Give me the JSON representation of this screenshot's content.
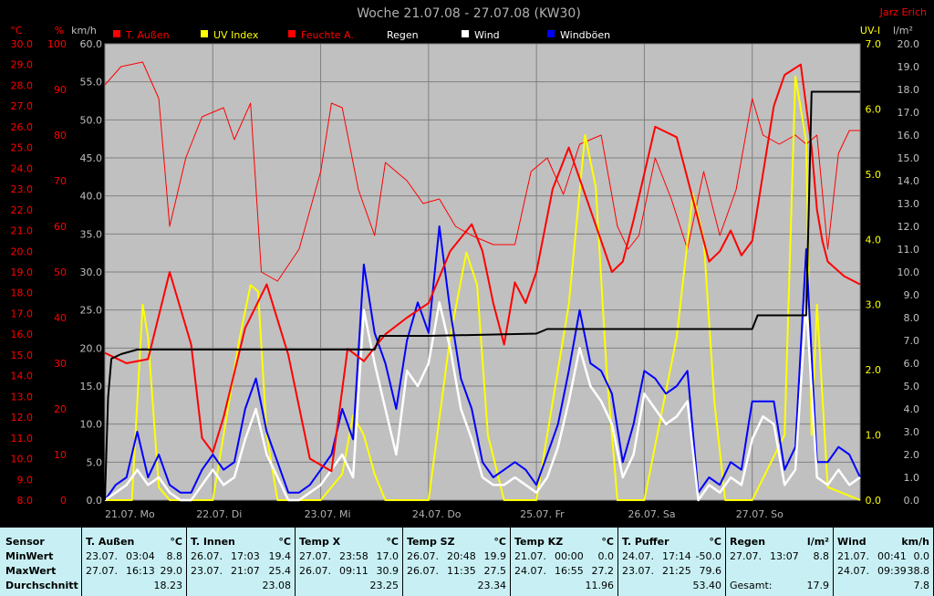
{
  "title": "Woche 21.07.08 - 27.07.08 (KW30)",
  "author": "Jarz Erich",
  "colors": {
    "temp": "#ff0000",
    "uv": "#ffff00",
    "hum": "#ff0000",
    "rain": "#000000",
    "wind": "#ffffff",
    "gust": "#0000ff",
    "grid": "#808080",
    "plot_bg": "#c0c0c0"
  },
  "chart_data": {
    "type": "line",
    "title": "Woche 21.07.08 - 27.07.08 (KW30)",
    "x_days": [
      "21.07. Mo",
      "22.07. Di",
      "23.07. Mi",
      "24.07. Do",
      "25.07. Fr",
      "26.07. Sa",
      "27.07. So"
    ],
    "axes": {
      "temp": {
        "unit": "°C",
        "min": 8.0,
        "max": 30.0,
        "ticks": [
          "30.0",
          "29.0",
          "28.0",
          "27.0",
          "26.0",
          "25.0",
          "24.0",
          "23.0",
          "22.0",
          "21.0",
          "20.0",
          "19.0",
          "18.0",
          "17.0",
          "16.0",
          "15.0",
          "14.0",
          "13.0",
          "12.0",
          "11.0",
          "10.0",
          "9.0",
          "8.0"
        ]
      },
      "hum": {
        "unit": "%",
        "min": 0,
        "max": 100,
        "ticks": [
          "100",
          "90",
          "80",
          "70",
          "60",
          "50",
          "40",
          "30",
          "20",
          "10",
          "0"
        ]
      },
      "wind": {
        "unit": "km/h",
        "min": 0,
        "max": 60,
        "ticks": [
          "60.0",
          "55.0",
          "50.0",
          "45.0",
          "40.0",
          "35.0",
          "30.0",
          "25.0",
          "20.0",
          "15.0",
          "10.0",
          "5.0",
          "0.0"
        ]
      },
      "uv": {
        "unit": "UV-I",
        "min": 0,
        "max": 7,
        "ticks": [
          "7.0",
          "6.0",
          "5.0",
          "4.0",
          "3.0",
          "2.0",
          "1.0",
          "0.0"
        ]
      },
      "rain": {
        "unit": "l/m²",
        "min": 0,
        "max": 20,
        "ticks": [
          "20.0",
          "19.0",
          "18.0",
          "17.0",
          "16.0",
          "15.0",
          "14.0",
          "13.0",
          "12.0",
          "11.0",
          "10.0",
          "9.0",
          "8.0",
          "7.0",
          "6.0",
          "5.0",
          "4.0",
          "3.0",
          "2.0",
          "1.0",
          "0.0"
        ]
      }
    },
    "legend": [
      "T. Außen",
      "UV Index",
      "Feuchte A.",
      "Regen",
      "Wind",
      "Windböen"
    ],
    "series": [
      {
        "name": "T. Außen",
        "axis": "temp",
        "x": [
          0,
          0.2,
          0.4,
          0.6,
          0.8,
          0.9,
          1.0,
          1.1,
          1.3,
          1.5,
          1.7,
          1.9,
          2.1,
          2.25,
          2.4,
          2.6,
          2.8,
          3.0,
          3.2,
          3.4,
          3.5,
          3.6,
          3.7,
          3.8,
          3.9,
          4.0,
          4.15,
          4.3,
          4.5,
          4.7,
          4.8,
          4.9,
          5.1,
          5.3,
          5.45,
          5.6,
          5.7,
          5.8,
          5.9,
          6.0,
          6.2,
          6.3,
          6.45,
          6.55,
          6.6,
          6.65,
          6.7,
          6.85,
          7.0
        ],
        "y": [
          15.1,
          14.6,
          14.8,
          19.0,
          15.5,
          11.0,
          10.3,
          12.0,
          16.3,
          18.4,
          15.0,
          10.0,
          9.4,
          15.3,
          14.7,
          16.0,
          16.8,
          17.5,
          20.0,
          21.3,
          20.0,
          17.5,
          15.5,
          18.5,
          17.5,
          19.0,
          23.0,
          25.0,
          22.0,
          19.0,
          19.5,
          21.5,
          26.0,
          25.5,
          22.5,
          19.5,
          20.0,
          21.0,
          19.8,
          20.5,
          27.0,
          28.5,
          29.0,
          25.0,
          22.0,
          20.5,
          19.5,
          18.8,
          18.4
        ]
      },
      {
        "name": "Feuchte A.",
        "axis": "hum",
        "x": [
          0,
          0.15,
          0.35,
          0.5,
          0.6,
          0.75,
          0.9,
          1.1,
          1.2,
          1.35,
          1.45,
          1.6,
          1.8,
          2.0,
          2.1,
          2.2,
          2.35,
          2.5,
          2.6,
          2.8,
          2.95,
          3.1,
          3.25,
          3.4,
          3.6,
          3.8,
          3.95,
          4.1,
          4.25,
          4.4,
          4.6,
          4.75,
          4.85,
          4.95,
          5.1,
          5.25,
          5.4,
          5.55,
          5.7,
          5.85,
          6.0,
          6.1,
          6.25,
          6.4,
          6.5,
          6.6,
          6.7,
          6.8,
          6.9,
          7.0
        ],
        "y": [
          91,
          95,
          96,
          88,
          60,
          75,
          84,
          86,
          79,
          87,
          50,
          48,
          55,
          72,
          87,
          86,
          68,
          58,
          74,
          70,
          65,
          66,
          60,
          58,
          56,
          56,
          72,
          75,
          67,
          78,
          80,
          60,
          55,
          58,
          75,
          66,
          55,
          72,
          58,
          68,
          88,
          80,
          78,
          80,
          78,
          80,
          55,
          76,
          81,
          81
        ]
      },
      {
        "name": "UV Index",
        "axis": "uv",
        "x": [
          0,
          0.25,
          0.35,
          0.4,
          0.5,
          0.6,
          1.0,
          1.25,
          1.35,
          1.42,
          1.5,
          1.6,
          2.0,
          2.2,
          2.3,
          2.4,
          2.5,
          2.6,
          3.0,
          3.2,
          3.35,
          3.45,
          3.55,
          3.7,
          4.0,
          4.3,
          4.45,
          4.55,
          4.65,
          4.75,
          5.0,
          5.3,
          5.45,
          5.55,
          5.65,
          5.75,
          6.0,
          6.3,
          6.4,
          6.5,
          6.55,
          6.6,
          6.7,
          7.0
        ],
        "y": [
          0,
          0,
          3.0,
          2.5,
          0.2,
          0,
          0,
          2.5,
          3.3,
          3.2,
          1.0,
          0,
          0,
          0.4,
          1.3,
          1.0,
          0.4,
          0,
          0,
          2.5,
          3.8,
          3.3,
          1.0,
          0,
          0,
          3.0,
          5.6,
          4.8,
          2.0,
          0,
          0,
          2.5,
          4.7,
          4.0,
          1.5,
          0,
          0,
          1.0,
          6.5,
          5.5,
          1.0,
          3.0,
          0.2,
          0
        ]
      },
      {
        "name": "Regen",
        "axis": "rain",
        "x": [
          0,
          0.03,
          0.06,
          0.15,
          0.3,
          0.5,
          2.5,
          2.55,
          3.0,
          4.0,
          4.1,
          5.5,
          6.0,
          6.05,
          6.5,
          6.55,
          6.6,
          7.0
        ],
        "y": [
          0,
          4.5,
          6.2,
          6.4,
          6.6,
          6.6,
          6.6,
          7.2,
          7.2,
          7.3,
          7.5,
          7.5,
          7.5,
          8.1,
          8.1,
          17.9,
          17.9,
          17.9
        ]
      },
      {
        "name": "Wind",
        "axis": "wind",
        "x": [
          0,
          0.1,
          0.2,
          0.3,
          0.4,
          0.5,
          0.6,
          0.7,
          0.8,
          0.9,
          1.0,
          1.1,
          1.2,
          1.3,
          1.4,
          1.5,
          1.6,
          1.7,
          1.8,
          1.9,
          2.0,
          2.1,
          2.2,
          2.3,
          2.4,
          2.5,
          2.6,
          2.7,
          2.8,
          2.9,
          3.0,
          3.1,
          3.2,
          3.3,
          3.4,
          3.5,
          3.6,
          3.7,
          3.8,
          3.9,
          4.0,
          4.1,
          4.2,
          4.3,
          4.4,
          4.5,
          4.6,
          4.7,
          4.8,
          4.9,
          5.0,
          5.1,
          5.2,
          5.3,
          5.4,
          5.5,
          5.6,
          5.7,
          5.8,
          5.9,
          6.0,
          6.1,
          6.2,
          6.3,
          6.4,
          6.5,
          6.6,
          6.7,
          6.8,
          6.9,
          7.0
        ],
        "y": [
          0,
          1,
          2,
          4,
          2,
          3,
          1,
          0,
          0,
          2,
          4,
          2,
          3,
          8,
          12,
          6,
          3,
          0,
          0,
          1,
          2,
          4,
          6,
          3,
          25,
          18,
          12,
          6,
          17,
          15,
          18,
          26,
          20,
          12,
          8,
          3,
          2,
          2,
          3,
          2,
          1,
          3,
          7,
          13,
          20,
          15,
          13,
          10,
          3,
          6,
          14,
          12,
          10,
          11,
          13,
          0,
          2,
          1,
          3,
          2,
          8,
          11,
          10,
          2,
          4,
          26,
          3,
          2,
          4,
          2,
          3
        ]
      },
      {
        "name": "Windböen",
        "axis": "wind",
        "x": [
          0,
          0.1,
          0.2,
          0.3,
          0.4,
          0.5,
          0.6,
          0.7,
          0.8,
          0.9,
          1.0,
          1.1,
          1.2,
          1.3,
          1.4,
          1.5,
          1.6,
          1.7,
          1.8,
          1.9,
          2.0,
          2.1,
          2.2,
          2.3,
          2.4,
          2.5,
          2.6,
          2.7,
          2.8,
          2.9,
          3.0,
          3.1,
          3.2,
          3.3,
          3.4,
          3.5,
          3.6,
          3.7,
          3.8,
          3.9,
          4.0,
          4.1,
          4.2,
          4.3,
          4.4,
          4.5,
          4.6,
          4.7,
          4.8,
          4.9,
          5.0,
          5.1,
          5.2,
          5.3,
          5.4,
          5.5,
          5.6,
          5.7,
          5.8,
          5.9,
          6.0,
          6.1,
          6.2,
          6.3,
          6.4,
          6.5,
          6.6,
          6.7,
          6.8,
          6.9,
          7.0
        ],
        "y": [
          0,
          2,
          3,
          9,
          3,
          6,
          2,
          1,
          1,
          4,
          6,
          4,
          5,
          12,
          16,
          9,
          5,
          1,
          1,
          2,
          4,
          6,
          12,
          8,
          31,
          22,
          18,
          12,
          21,
          26,
          22,
          36,
          25,
          16,
          12,
          5,
          3,
          4,
          5,
          4,
          2,
          6,
          10,
          17,
          25,
          18,
          17,
          14,
          5,
          10,
          17,
          16,
          14,
          15,
          17,
          1,
          3,
          2,
          5,
          4,
          13,
          13,
          13,
          4,
          7,
          33,
          5,
          5,
          7,
          6,
          3
        ]
      }
    ]
  },
  "stats": {
    "row_labels": [
      "Sensor",
      "MinWert",
      "MaxWert",
      "Durchschnitt"
    ],
    "blocks": [
      {
        "name": "T. Außen",
        "unit": "°C",
        "min": [
          "23.07.",
          "03:04",
          "8.8"
        ],
        "max": [
          "27.07.",
          "16:13",
          "29.0"
        ],
        "avg": "18.23"
      },
      {
        "name": "T. Innen",
        "unit": "°C",
        "min": [
          "26.07.",
          "17:03",
          "19.4"
        ],
        "max": [
          "23.07.",
          "21:07",
          "25.4"
        ],
        "avg": "23.08"
      },
      {
        "name": "Temp X",
        "unit": "°C",
        "min": [
          "27.07.",
          "23:58",
          "17.0"
        ],
        "max": [
          "26.07.",
          "09:11",
          "30.9"
        ],
        "avg": "23.25"
      },
      {
        "name": "Temp SZ",
        "unit": "°C",
        "min": [
          "26.07.",
          "20:48",
          "19.9"
        ],
        "max": [
          "26.07.",
          "11:35",
          "27.5"
        ],
        "avg": "23.34"
      },
      {
        "name": "Temp KZ",
        "unit": "°C",
        "min": [
          "21.07.",
          "00:00",
          "0.0"
        ],
        "max": [
          "24.07.",
          "16:55",
          "27.2"
        ],
        "avg": "11.96"
      },
      {
        "name": "T. Puffer",
        "unit": "°C",
        "min": [
          "24.07.",
          "17:14",
          "-50.0"
        ],
        "max": [
          "23.07.",
          "21:25",
          "79.6"
        ],
        "avg": "53.40"
      },
      {
        "name": "Regen",
        "unit": "l/m²",
        "min": [
          "27.07.",
          "13:07",
          "8.8"
        ],
        "max": [
          "",
          "",
          ""
        ],
        "avg": "17.9",
        "avg_label": "Gesamt:"
      },
      {
        "name": "Wind",
        "unit": "km/h",
        "min": [
          "21.07.",
          "00:41",
          "0.0"
        ],
        "max": [
          "24.07.",
          "09:39",
          "38.8"
        ],
        "avg": "7.8"
      }
    ]
  }
}
